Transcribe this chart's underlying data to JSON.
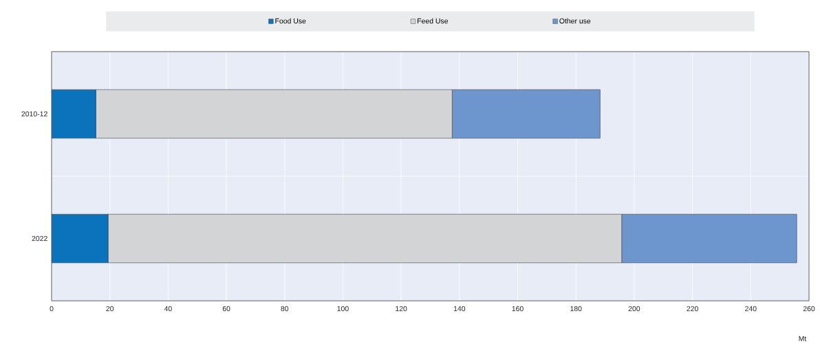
{
  "chart_data": {
    "type": "bar",
    "orientation": "horizontal",
    "stacked": true,
    "categories": [
      "2010-12",
      "2022"
    ],
    "series": [
      {
        "name": "Food Use",
        "color": "#0a73bc",
        "values": [
          15.2,
          19.4
        ]
      },
      {
        "name": "Feed Use",
        "color": "#d3d4d6",
        "values": [
          122.3,
          176.3
        ]
      },
      {
        "name": "Other use",
        "color": "#6d96cf",
        "values": [
          50.8,
          60.1
        ]
      }
    ],
    "xlim": [
      0,
      260
    ],
    "xticks": [
      0,
      20,
      40,
      60,
      80,
      100,
      120,
      140,
      160,
      180,
      200,
      220,
      240,
      260
    ],
    "xlabel": "Mt",
    "grid": true,
    "legend": "top"
  }
}
